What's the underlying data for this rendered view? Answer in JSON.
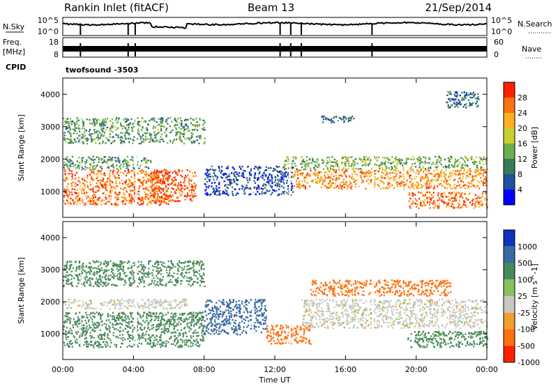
{
  "header": {
    "title": "Rankin Inlet (fitACF)",
    "beam": "Beam 13",
    "date": "21/Sep/2014"
  },
  "top_panels": {
    "nsky_label": "N.Sky",
    "nsky_left_ticks": [
      "10^5",
      "10^0"
    ],
    "nsearch_label": "N.Search",
    "nsearch_right_ticks": [
      "10^5",
      "10^0"
    ],
    "freq_label_1": "Freq.",
    "freq_label_2": "[MHz]",
    "freq_ticks": [
      "18",
      "8"
    ],
    "nave_label": "Nave",
    "nave_ticks": [
      "60",
      "0"
    ],
    "cpid_label": "CPID",
    "cpid_value": "twofsound -3503"
  },
  "chart_data": [
    {
      "type": "heatmap",
      "quantity": "Power",
      "ylabel": "Slant Range [km]",
      "ylim": [
        200,
        4500
      ],
      "yticks": [
        "1000",
        "2000",
        "3000",
        "4000"
      ],
      "xlim": [
        "00:00",
        "24:00"
      ],
      "colorbar_title": "Power [dB]",
      "colorbar_ticks": [
        "4",
        "8",
        "12",
        "16",
        "20",
        "24",
        "28"
      ],
      "colors": [
        "#0000ff",
        "#2050a0",
        "#3a7a5a",
        "#6ab04c",
        "#c8d030",
        "#ffb020",
        "#ff7010",
        "#ff2000"
      ],
      "regions": [
        {
          "t0": 0.0,
          "t1": 6.0,
          "r0": 600,
          "r1": 1700,
          "value": 26
        },
        {
          "t0": 5.0,
          "t1": 7.5,
          "r0": 700,
          "r1": 1700,
          "value": 28
        },
        {
          "t0": 0.0,
          "t1": 5.0,
          "r0": 1700,
          "r1": 2100,
          "value": 12
        },
        {
          "t0": 8.0,
          "t1": 13.0,
          "r0": 900,
          "r1": 1800,
          "value": 6
        },
        {
          "t0": 13.0,
          "t1": 24.0,
          "r0": 1100,
          "r1": 1700,
          "value": 24
        },
        {
          "t0": 12.5,
          "t1": 24.0,
          "r0": 1700,
          "r1": 2100,
          "value": 14
        },
        {
          "t0": 19.5,
          "t1": 24.0,
          "r0": 500,
          "r1": 1000,
          "value": 26
        },
        {
          "t0": 14.5,
          "t1": 16.5,
          "r0": 3150,
          "r1": 3350,
          "value": 8
        },
        {
          "t0": 0.0,
          "t1": 8.0,
          "r0": 2500,
          "r1": 3300,
          "value": 12
        },
        {
          "t0": 21.5,
          "t1": 23.5,
          "r0": 3600,
          "r1": 4100,
          "value": 8
        }
      ]
    },
    {
      "type": "heatmap",
      "quantity": "Velocity",
      "ylabel": "Slant Range [km]",
      "ylim": [
        200,
        4500
      ],
      "yticks": [
        "1000",
        "2000",
        "3000",
        "4000"
      ],
      "xlim": [
        "00:00",
        "24:00"
      ],
      "xticks": [
        "00:00",
        "04:00",
        "08:00",
        "12:00",
        "16:00",
        "20:00",
        "00:00"
      ],
      "xlabel": "Time UT",
      "colorbar_title": "Velocity [m s^-1]",
      "colorbar_ticks": [
        "1000",
        "500",
        "100",
        "25",
        "-25",
        "-100",
        "-500",
        "-1000"
      ],
      "colors": [
        "#1030c0",
        "#3a6aa0",
        "#4a8a5a",
        "#8ac060",
        "#c8c8c0",
        "#f0a030",
        "#ff7010",
        "#ff2000"
      ],
      "regions": [
        {
          "t0": 0.0,
          "t1": 8.0,
          "r0": 600,
          "r1": 1700,
          "value": 150
        },
        {
          "t0": 8.0,
          "t1": 11.5,
          "r0": 1000,
          "r1": 2100,
          "value": 700
        },
        {
          "t0": 11.5,
          "t1": 14.0,
          "r0": 700,
          "r1": 1300,
          "value": -300
        },
        {
          "t0": 13.5,
          "t1": 24.0,
          "r0": 1200,
          "r1": 2100,
          "value": 0
        },
        {
          "t0": 19.5,
          "t1": 24.0,
          "r0": 600,
          "r1": 1100,
          "value": 150
        },
        {
          "t0": 14.0,
          "t1": 22.0,
          "r0": 2200,
          "r1": 2700,
          "value": -200
        },
        {
          "t0": 0.0,
          "t1": 7.0,
          "r0": 1800,
          "r1": 2100,
          "value": 0
        },
        {
          "t0": 0.0,
          "t1": 8.0,
          "r0": 2500,
          "r1": 3300,
          "value": 200
        }
      ]
    }
  ]
}
